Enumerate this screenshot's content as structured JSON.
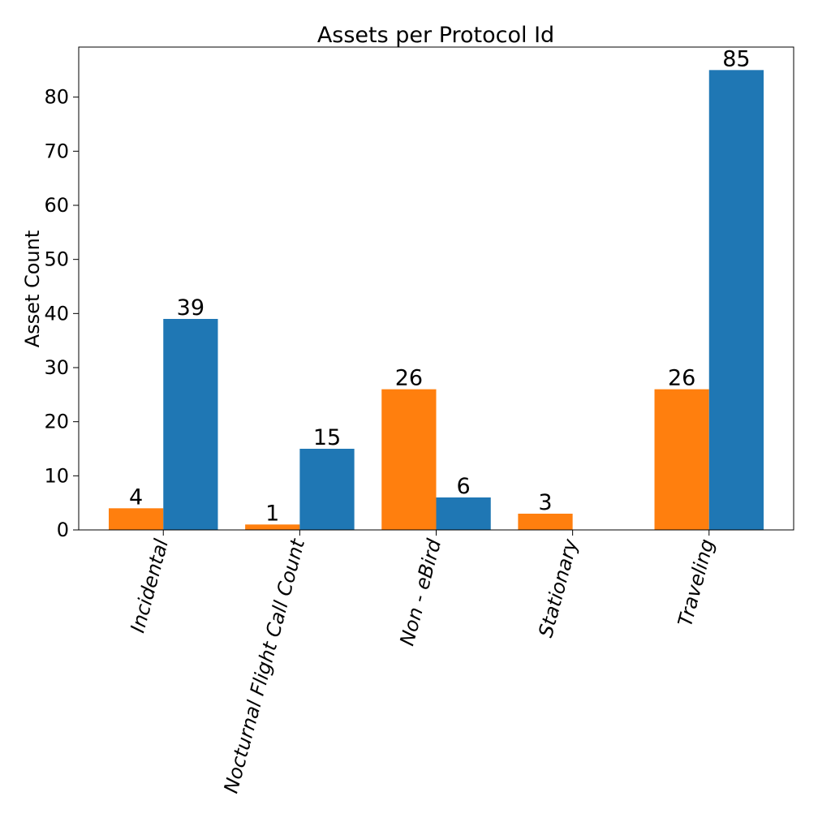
{
  "chart_data": {
    "type": "bar",
    "title": "Assets per Protocol Id",
    "xlabel": "",
    "ylabel": "Asset Count",
    "categories": [
      "Incidental",
      "Nocturnal Flight Call Count",
      "Non - eBird",
      "Stationary",
      "Traveling"
    ],
    "series": [
      {
        "values": [
          4,
          1,
          26,
          3,
          26
        ],
        "color": "#ff7f0e"
      },
      {
        "values": [
          39,
          15,
          6,
          0,
          85
        ],
        "color": "#1f77b4"
      }
    ],
    "data_labels": [
      [
        "4",
        "1",
        "26",
        "3",
        "26"
      ],
      [
        "39",
        "15",
        "6",
        "",
        "85"
      ]
    ],
    "yticks": [
      0,
      10,
      20,
      30,
      40,
      50,
      60,
      70,
      80
    ],
    "ylim": [
      0,
      89.25
    ],
    "grid": false,
    "legend": "none"
  }
}
